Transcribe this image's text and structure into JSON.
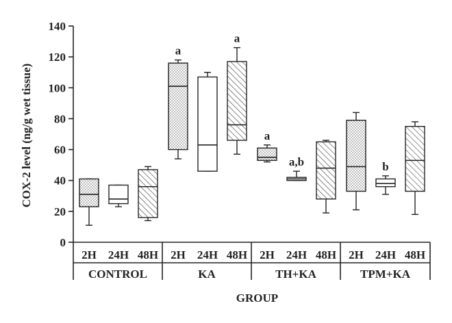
{
  "chart_data": {
    "type": "box",
    "title": "",
    "xlabel": "GROUP",
    "ylabel": "COX-2 level (ng/g wet tissue)",
    "ylim": [
      0,
      140
    ],
    "yticks": [
      "0",
      "20",
      "40",
      "60",
      "80",
      "100",
      "120",
      "140"
    ],
    "groups": [
      {
        "name": "CONTROL",
        "boxes": [
          {
            "time": "2H",
            "pattern": "dots",
            "min": 11,
            "q1": 23,
            "median": 31,
            "q3": 41,
            "max": 41,
            "annotation": ""
          },
          {
            "time": "24H",
            "pattern": "open",
            "min": 23,
            "q1": 25,
            "median": 28,
            "q3": 37,
            "max": 37,
            "annotation": ""
          },
          {
            "time": "48H",
            "pattern": "hatch",
            "min": 14,
            "q1": 16,
            "median": 36,
            "q3": 47,
            "max": 49,
            "annotation": ""
          }
        ]
      },
      {
        "name": "KA",
        "boxes": [
          {
            "time": "2H",
            "pattern": "dots",
            "min": 54,
            "q1": 60,
            "median": 101,
            "q3": 116,
            "max": 118,
            "annotation": "a"
          },
          {
            "time": "24H",
            "pattern": "open",
            "min": 46,
            "q1": 46,
            "median": 63,
            "q3": 107,
            "max": 110,
            "annotation": ""
          },
          {
            "time": "48H",
            "pattern": "hatch",
            "min": 57,
            "q1": 66,
            "median": 76,
            "q3": 117,
            "max": 126,
            "annotation": "a"
          }
        ]
      },
      {
        "name": "TH+KA",
        "boxes": [
          {
            "time": "2H",
            "pattern": "dots",
            "min": 52,
            "q1": 53,
            "median": 55,
            "q3": 61,
            "max": 63,
            "annotation": "a"
          },
          {
            "time": "24H",
            "pattern": "open",
            "min": 40,
            "q1": 40,
            "median": 41,
            "q3": 42,
            "max": 46,
            "annotation": "a,b"
          },
          {
            "time": "48H",
            "pattern": "hatch",
            "min": 19,
            "q1": 28,
            "median": 48,
            "q3": 65,
            "max": 66,
            "annotation": ""
          }
        ]
      },
      {
        "name": "TPM+KA",
        "boxes": [
          {
            "time": "2H",
            "pattern": "dots",
            "min": 21,
            "q1": 33,
            "median": 49,
            "q3": 79,
            "max": 84,
            "annotation": ""
          },
          {
            "time": "24H",
            "pattern": "open",
            "min": 31,
            "q1": 36,
            "median": 38,
            "q3": 41,
            "max": 43,
            "annotation": "b"
          },
          {
            "time": "48H",
            "pattern": "hatch",
            "min": 18,
            "q1": 33,
            "median": 53,
            "q3": 75,
            "max": 78,
            "annotation": ""
          }
        ]
      }
    ]
  }
}
